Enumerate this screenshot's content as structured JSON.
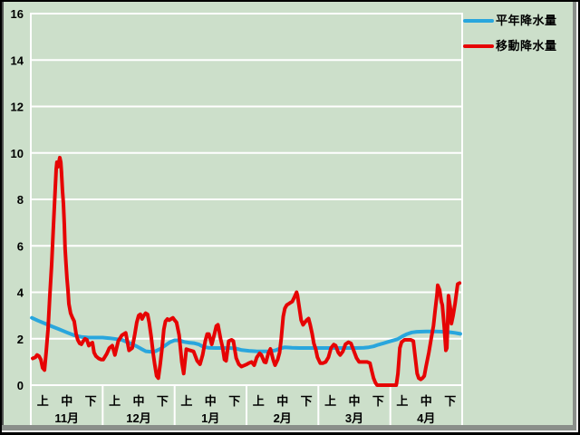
{
  "colors": {
    "background": "#CCDFCA",
    "gridline": "#FFFFFF",
    "text": "#000000",
    "normal_line": "#29A6DD",
    "moving_line": "#E60404"
  },
  "legend": {
    "items": [
      {
        "label": "平年降水量",
        "color": "#29A6DD"
      },
      {
        "label": "移動降水量",
        "color": "#E60404"
      }
    ]
  },
  "chart_data": {
    "type": "line",
    "title": "",
    "xlabel": "",
    "ylabel": "",
    "ylim": [
      0,
      16
    ],
    "yticks": [
      0,
      2,
      4,
      6,
      8,
      10,
      12,
      14,
      16
    ],
    "grid": true,
    "legend_position": "top-right",
    "x_axis": {
      "months": [
        {
          "label": "11月",
          "periods": [
            "上",
            "中",
            "下"
          ]
        },
        {
          "label": "12月",
          "periods": [
            "上",
            "中",
            "下"
          ]
        },
        {
          "label": "1月",
          "periods": [
            "上",
            "中",
            "下"
          ]
        },
        {
          "label": "2月",
          "periods": [
            "上",
            "中",
            "下"
          ]
        },
        {
          "label": "3月",
          "periods": [
            "上",
            "中",
            "下"
          ]
        },
        {
          "label": "4月",
          "periods": [
            "上",
            "中",
            "下"
          ]
        }
      ],
      "days_per_month": 30
    },
    "series": [
      {
        "name": "平年降水量",
        "color": "#29A6DD",
        "points": [
          [
            0.4,
            2.9
          ],
          [
            3,
            2.78
          ],
          [
            6,
            2.65
          ],
          [
            9,
            2.52
          ],
          [
            12,
            2.4
          ],
          [
            15,
            2.27
          ],
          [
            18,
            2.15
          ],
          [
            21,
            2.08
          ],
          [
            24,
            2.05
          ],
          [
            27,
            2.05
          ],
          [
            30,
            2.05
          ],
          [
            33,
            2.02
          ],
          [
            36,
            1.98
          ],
          [
            38,
            1.95
          ],
          [
            40,
            1.86
          ],
          [
            42,
            1.78
          ],
          [
            44,
            1.68
          ],
          [
            46,
            1.57
          ],
          [
            48,
            1.46
          ],
          [
            50,
            1.44
          ],
          [
            52,
            1.46
          ],
          [
            54,
            1.56
          ],
          [
            56,
            1.7
          ],
          [
            58,
            1.85
          ],
          [
            60,
            1.93
          ],
          [
            62,
            1.93
          ],
          [
            64,
            1.86
          ],
          [
            66,
            1.83
          ],
          [
            68,
            1.81
          ],
          [
            70,
            1.76
          ],
          [
            72,
            1.65
          ],
          [
            74,
            1.61
          ],
          [
            77,
            1.6
          ],
          [
            80,
            1.6
          ],
          [
            83,
            1.6
          ],
          [
            86,
            1.57
          ],
          [
            88,
            1.51
          ],
          [
            91,
            1.48
          ],
          [
            94,
            1.46
          ],
          [
            97,
            1.45
          ],
          [
            100,
            1.46
          ],
          [
            102,
            1.5
          ],
          [
            104,
            1.58
          ],
          [
            106,
            1.63
          ],
          [
            109,
            1.61
          ],
          [
            112,
            1.6
          ],
          [
            115,
            1.6
          ],
          [
            118,
            1.6
          ],
          [
            121,
            1.6
          ],
          [
            124,
            1.6
          ],
          [
            127,
            1.6
          ],
          [
            130,
            1.6
          ],
          [
            133,
            1.6
          ],
          [
            136,
            1.6
          ],
          [
            139,
            1.61
          ],
          [
            141,
            1.63
          ],
          [
            143,
            1.67
          ],
          [
            145,
            1.74
          ],
          [
            147,
            1.8
          ],
          [
            149,
            1.86
          ],
          [
            151,
            1.92
          ],
          [
            153,
            1.98
          ],
          [
            155,
            2.1
          ],
          [
            157,
            2.2
          ],
          [
            159,
            2.27
          ],
          [
            161,
            2.3
          ],
          [
            165,
            2.31
          ],
          [
            169,
            2.31
          ],
          [
            173,
            2.3
          ],
          [
            175,
            2.28
          ],
          [
            177,
            2.25
          ],
          [
            179.2,
            2.21
          ]
        ]
      },
      {
        "name": "移動降水量",
        "color": "#E60404",
        "points": [
          [
            0.8,
            1.15
          ],
          [
            1.9,
            1.2
          ],
          [
            2.6,
            1.3
          ],
          [
            3.4,
            1.25
          ],
          [
            4.2,
            1.1
          ],
          [
            4.9,
            0.75
          ],
          [
            5.7,
            0.65
          ],
          [
            6.4,
            1.4
          ],
          [
            7.2,
            2.4
          ],
          [
            7.9,
            3.8
          ],
          [
            8.7,
            5.2
          ],
          [
            9.4,
            6.8
          ],
          [
            10.2,
            8.5
          ],
          [
            10.6,
            9.3
          ],
          [
            10.9,
            9.6
          ],
          [
            11.3,
            9.4
          ],
          [
            11.7,
            9.6
          ],
          [
            12.1,
            9.8
          ],
          [
            12.5,
            9.6
          ],
          [
            12.8,
            9.2
          ],
          [
            13.2,
            8.4
          ],
          [
            13.6,
            7.8
          ],
          [
            14,
            6.9
          ],
          [
            14.3,
            5.9
          ],
          [
            14.7,
            5.2
          ],
          [
            15.1,
            4.6
          ],
          [
            15.5,
            4.1
          ],
          [
            15.9,
            3.5
          ],
          [
            16.6,
            3.1
          ],
          [
            17.4,
            2.9
          ],
          [
            18.1,
            2.75
          ],
          [
            18.9,
            2.2
          ],
          [
            19.6,
            1.95
          ],
          [
            20.4,
            1.8
          ],
          [
            21.1,
            1.76
          ],
          [
            21.9,
            1.9
          ],
          [
            22.6,
            2.0
          ],
          [
            23.4,
            1.95
          ],
          [
            24.2,
            1.7
          ],
          [
            24.9,
            1.78
          ],
          [
            25.7,
            1.83
          ],
          [
            26.4,
            1.4
          ],
          [
            27.2,
            1.25
          ],
          [
            28.3,
            1.15
          ],
          [
            29.4,
            1.1
          ],
          [
            30.2,
            1.1
          ],
          [
            31.7,
            1.35
          ],
          [
            32.8,
            1.6
          ],
          [
            34,
            1.7
          ],
          [
            35.1,
            1.3
          ],
          [
            36.5,
            1.9
          ],
          [
            38,
            2.15
          ],
          [
            39.6,
            2.25
          ],
          [
            41,
            1.5
          ],
          [
            42.3,
            1.6
          ],
          [
            43.4,
            2.2
          ],
          [
            44.2,
            2.7
          ],
          [
            45,
            3.0
          ],
          [
            45.7,
            3.05
          ],
          [
            46.4,
            2.85
          ],
          [
            47.2,
            3.0
          ],
          [
            47.9,
            3.1
          ],
          [
            48.7,
            3.05
          ],
          [
            49.4,
            2.7
          ],
          [
            50.2,
            2.1
          ],
          [
            51,
            1.4
          ],
          [
            51.7,
            0.9
          ],
          [
            52.5,
            0.4
          ],
          [
            53.2,
            0.3
          ],
          [
            54,
            0.9
          ],
          [
            54.7,
            1.55
          ],
          [
            55.5,
            2.4
          ],
          [
            56.2,
            2.75
          ],
          [
            57,
            2.85
          ],
          [
            57.7,
            2.8
          ],
          [
            58.5,
            2.85
          ],
          [
            59.3,
            2.9
          ],
          [
            60,
            2.8
          ],
          [
            60.8,
            2.7
          ],
          [
            61.9,
            2.15
          ],
          [
            63,
            1.0
          ],
          [
            63.8,
            0.5
          ],
          [
            64.9,
            1.55
          ],
          [
            66.4,
            1.5
          ],
          [
            67.9,
            1.45
          ],
          [
            69.4,
            1.05
          ],
          [
            70.6,
            0.9
          ],
          [
            71.7,
            1.3
          ],
          [
            72.8,
            1.9
          ],
          [
            73.6,
            2.2
          ],
          [
            74.3,
            2.2
          ],
          [
            75.5,
            1.76
          ],
          [
            76.6,
            2.2
          ],
          [
            77.4,
            2.55
          ],
          [
            78.1,
            2.6
          ],
          [
            79.2,
            2.0
          ],
          [
            80,
            1.63
          ],
          [
            80.8,
            1.1
          ],
          [
            81.5,
            1.05
          ],
          [
            82.6,
            1.9
          ],
          [
            83.8,
            1.95
          ],
          [
            84.5,
            1.9
          ],
          [
            85.7,
            1.17
          ],
          [
            86.8,
            0.9
          ],
          [
            87.9,
            0.8
          ],
          [
            89.1,
            0.85
          ],
          [
            90.2,
            0.9
          ],
          [
            91,
            0.95
          ],
          [
            92.1,
            1.0
          ],
          [
            93.2,
            0.86
          ],
          [
            94.3,
            1.2
          ],
          [
            95.5,
            1.37
          ],
          [
            96.2,
            1.3
          ],
          [
            97.4,
            1.0
          ],
          [
            98.1,
            0.98
          ],
          [
            99.2,
            1.4
          ],
          [
            100,
            1.56
          ],
          [
            101.1,
            1.1
          ],
          [
            101.9,
            0.86
          ],
          [
            103,
            1.1
          ],
          [
            103.8,
            1.4
          ],
          [
            104.5,
            2.0
          ],
          [
            105.3,
            2.95
          ],
          [
            106,
            3.3
          ],
          [
            106.8,
            3.45
          ],
          [
            107.6,
            3.5
          ],
          [
            108.3,
            3.55
          ],
          [
            109.1,
            3.6
          ],
          [
            109.8,
            3.75
          ],
          [
            110.9,
            4.0
          ],
          [
            111.3,
            3.85
          ],
          [
            112.1,
            3.3
          ],
          [
            112.8,
            2.8
          ],
          [
            113.6,
            2.6
          ],
          [
            114.3,
            2.7
          ],
          [
            115.1,
            2.8
          ],
          [
            115.9,
            2.87
          ],
          [
            116.6,
            2.6
          ],
          [
            117.4,
            2.2
          ],
          [
            118.1,
            1.8
          ],
          [
            118.9,
            1.55
          ],
          [
            119.6,
            1.2
          ],
          [
            120.8,
            0.95
          ],
          [
            121.9,
            0.95
          ],
          [
            123,
            1.0
          ],
          [
            124.2,
            1.2
          ],
          [
            125.3,
            1.6
          ],
          [
            126.4,
            1.75
          ],
          [
            127.2,
            1.7
          ],
          [
            128.3,
            1.4
          ],
          [
            129.1,
            1.3
          ],
          [
            130.2,
            1.45
          ],
          [
            131.3,
            1.76
          ],
          [
            132.5,
            1.85
          ],
          [
            133.6,
            1.8
          ],
          [
            134.7,
            1.5
          ],
          [
            135.9,
            1.17
          ],
          [
            137,
            1.0
          ],
          [
            138.1,
            1.0
          ],
          [
            139.3,
            1.0
          ],
          [
            140.4,
            1.0
          ],
          [
            141.5,
            0.95
          ],
          [
            142.3,
            0.6
          ],
          [
            143,
            0.3
          ],
          [
            143.8,
            0.1
          ],
          [
            144.5,
            0
          ],
          [
            146,
            0
          ],
          [
            148,
            0
          ],
          [
            150,
            0
          ],
          [
            152.5,
            0
          ],
          [
            153.2,
            0.5
          ],
          [
            154,
            1.6
          ],
          [
            154.7,
            1.85
          ],
          [
            155.9,
            1.95
          ],
          [
            157.4,
            1.95
          ],
          [
            158.5,
            1.95
          ],
          [
            159.6,
            1.9
          ],
          [
            160.4,
            1.2
          ],
          [
            161.2,
            0.5
          ],
          [
            161.9,
            0.3
          ],
          [
            162.7,
            0.25
          ],
          [
            163.4,
            0.3
          ],
          [
            164.2,
            0.4
          ],
          [
            164.9,
            0.8
          ],
          [
            166.1,
            1.4
          ],
          [
            167.2,
            2.1
          ],
          [
            168,
            2.55
          ],
          [
            168.7,
            3.2
          ],
          [
            169.5,
            3.9
          ],
          [
            169.8,
            4.3
          ],
          [
            170.6,
            4.1
          ],
          [
            171.3,
            3.6
          ],
          [
            171.7,
            3.45
          ],
          [
            172.5,
            2.5
          ],
          [
            173.2,
            1.5
          ],
          [
            173.6,
            1.6
          ],
          [
            174.3,
            3.85
          ],
          [
            175.1,
            3.3
          ],
          [
            175.5,
            2.65
          ],
          [
            176.2,
            3.0
          ],
          [
            177,
            3.5
          ],
          [
            178.1,
            4.35
          ],
          [
            178.9,
            4.4
          ]
        ]
      }
    ]
  }
}
